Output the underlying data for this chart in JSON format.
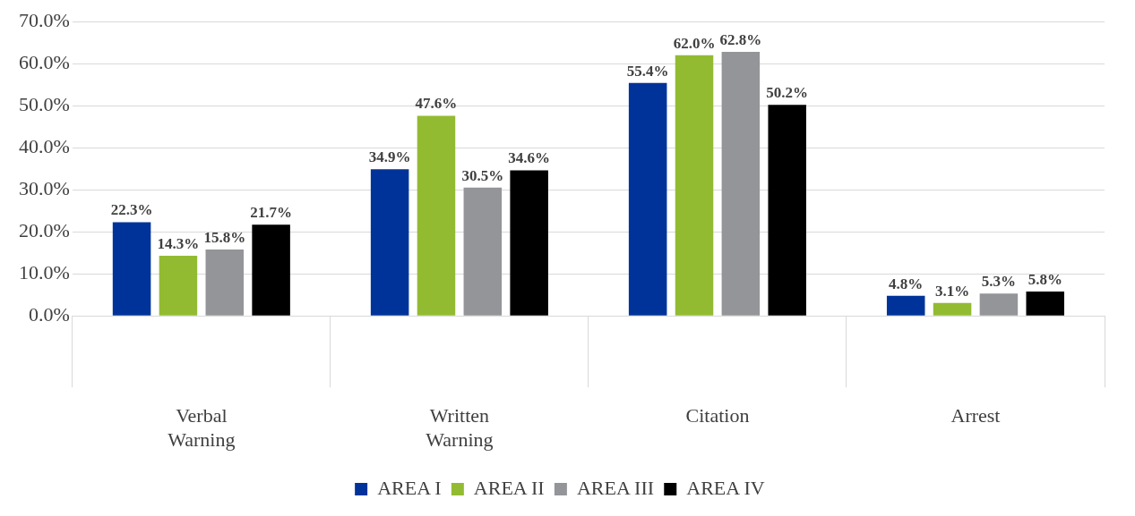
{
  "chart_data": {
    "type": "bar",
    "categories": [
      "Verbal Warning",
      "Written Warning",
      "Citation",
      "Arrest"
    ],
    "series": [
      {
        "name": "AREA I",
        "color": "#003399",
        "values": [
          22.3,
          34.9,
          55.4,
          4.8
        ],
        "value_labels": [
          "22.3%",
          "34.9%",
          "55.4%",
          "4.8%"
        ]
      },
      {
        "name": "AREA II",
        "color": "#92bb32",
        "values": [
          14.3,
          47.6,
          62.0,
          3.1
        ],
        "value_labels": [
          "14.3%",
          "47.6%",
          "62.0%",
          "3.1%"
        ]
      },
      {
        "name": "AREA III",
        "color": "#939598",
        "values": [
          15.8,
          30.5,
          62.8,
          5.3
        ],
        "value_labels": [
          "15.8%",
          "30.5%",
          "62.8%",
          "5.3%"
        ]
      },
      {
        "name": "AREA IV",
        "color": "#000000",
        "values": [
          21.7,
          34.6,
          50.2,
          5.8
        ],
        "value_labels": [
          "21.7%",
          "34.6%",
          "50.2%",
          "5.8%"
        ]
      }
    ],
    "ylim": [
      0,
      70
    ],
    "yticks": [
      {
        "value": 0,
        "label": "0.0%"
      },
      {
        "value": 10,
        "label": "10.0%"
      },
      {
        "value": 20,
        "label": "20.0%"
      },
      {
        "value": 30,
        "label": "30.0%"
      },
      {
        "value": 40,
        "label": "40.0%"
      },
      {
        "value": 50,
        "label": "50.0%"
      },
      {
        "value": 60,
        "label": "60.0%"
      },
      {
        "value": 70,
        "label": "70.0%"
      }
    ],
    "grid": "y",
    "legend": "bottom"
  }
}
